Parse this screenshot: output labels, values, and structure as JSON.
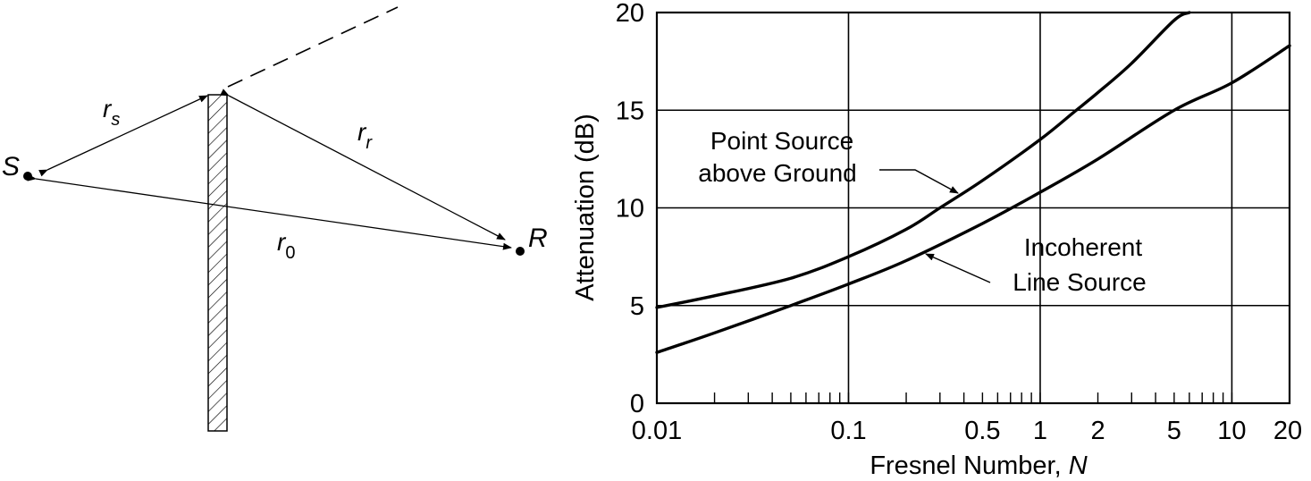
{
  "diagram": {
    "label_s": "S",
    "label_r": "R",
    "label_rs_main": "r",
    "label_rs_sub": "s",
    "label_rr_main": "r",
    "label_rr_sub": "r",
    "label_r0_main": "r",
    "label_r0_sub": "0"
  },
  "chart_data": {
    "type": "line",
    "x_scale": "log",
    "xlim": [
      0.01,
      20
    ],
    "ylim": [
      0,
      20
    ],
    "x_ticks": [
      0.01,
      0.1,
      0.5,
      1,
      2,
      5,
      10,
      20
    ],
    "x_tick_labels": [
      "0.01",
      "0.1",
      "0.5",
      "1",
      "2",
      "5",
      "10",
      "20"
    ],
    "y_ticks": [
      0,
      5,
      10,
      15,
      20
    ],
    "y_tick_labels": [
      "0",
      "5",
      "10",
      "15",
      "20"
    ],
    "xlabel": "Fresnel Number, ",
    "xlabel_var": "N",
    "ylabel": "Attenuation (dB)",
    "grid": true,
    "series": [
      {
        "name": "Point Source above Ground",
        "x": [
          0.01,
          0.02,
          0.05,
          0.1,
          0.2,
          0.3,
          0.5,
          1,
          1.5,
          2,
          3,
          5,
          6
        ],
        "y": [
          4.9,
          5.5,
          6.4,
          7.5,
          8.9,
          10.0,
          11.4,
          13.5,
          14.9,
          15.9,
          17.4,
          19.6,
          20.0
        ]
      },
      {
        "name": "Incoherent Line Source",
        "x": [
          0.01,
          0.02,
          0.05,
          0.1,
          0.2,
          0.5,
          1,
          2,
          5,
          10,
          20
        ],
        "y": [
          2.6,
          3.6,
          5.0,
          6.1,
          7.3,
          9.2,
          10.8,
          12.5,
          15.0,
          16.4,
          18.3
        ]
      }
    ],
    "annotations": [
      {
        "line1": "Point Source",
        "line2": "above Ground"
      },
      {
        "line1": "Incoherent",
        "line2": "Line Source"
      }
    ]
  }
}
